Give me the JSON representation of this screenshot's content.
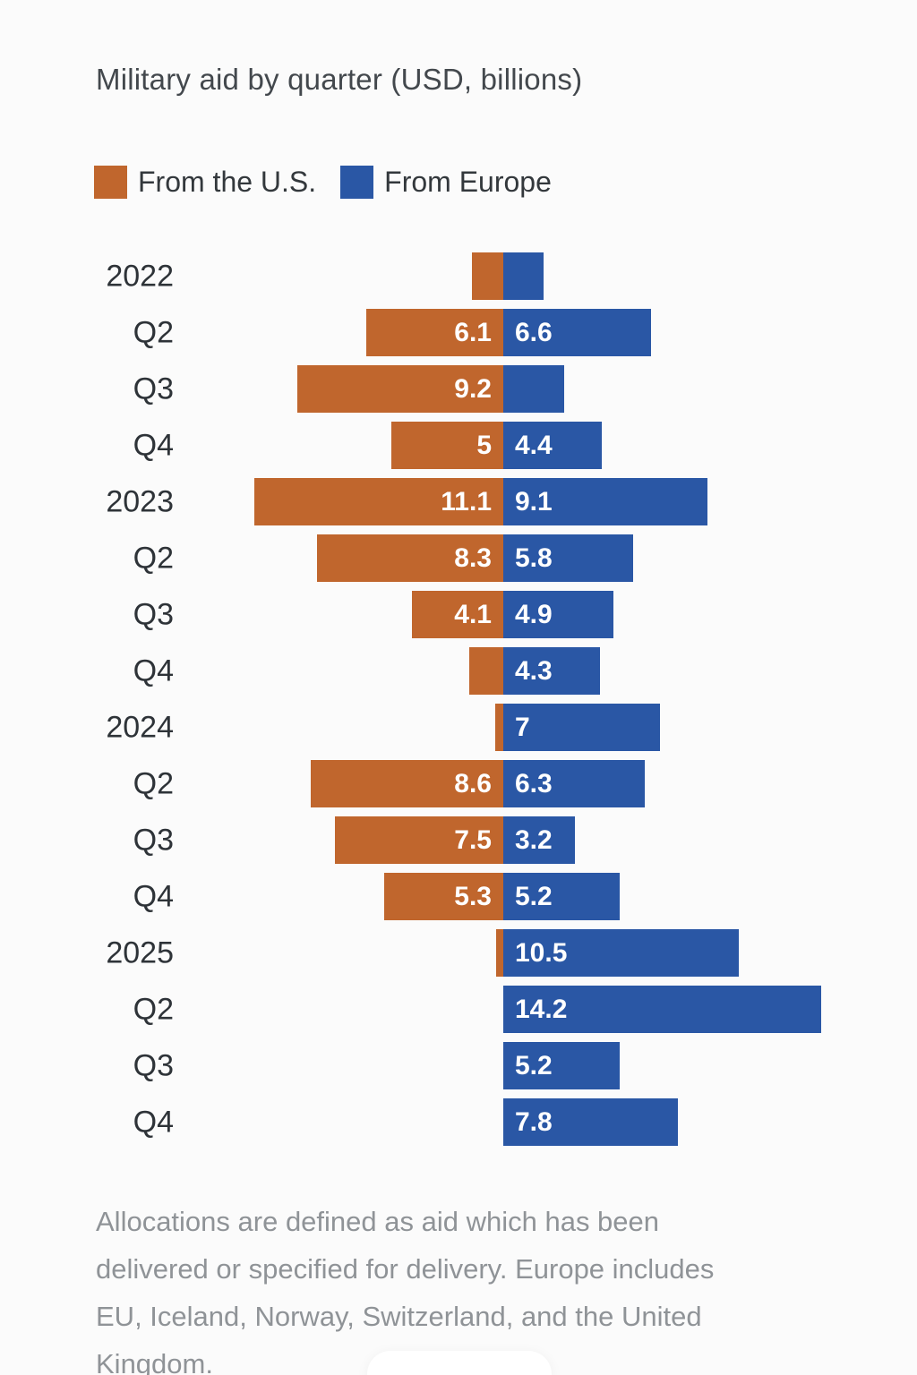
{
  "title": "Military aid by quarter (USD, billions)",
  "legend": [
    {
      "label": "From the U.S.",
      "color": "#c0662d"
    },
    {
      "label": "From Europe",
      "color": "#2a57a5"
    }
  ],
  "chart_data": {
    "type": "bar",
    "orientation": "horizontal-diverging",
    "title": "Military aid by quarter (USD, billions)",
    "unit": "USD billions",
    "legend_position": "top",
    "grid": false,
    "categories": [
      "2022",
      "Q2",
      "Q3",
      "Q4",
      "2023",
      "Q2",
      "Q3",
      "Q4",
      "2024",
      "Q2",
      "Q3",
      "Q4",
      "2025",
      "Q2",
      "Q3",
      "Q4"
    ],
    "series": [
      {
        "name": "From the U.S.",
        "color": "#c0662d",
        "direction": "left",
        "values": [
          1.4,
          6.1,
          9.2,
          5,
          11.1,
          8.3,
          4.1,
          1.5,
          0.35,
          8.6,
          7.5,
          5.3,
          0.3,
          0,
          0,
          0
        ],
        "labels": [
          "",
          "6.1",
          "9.2",
          "5",
          "11.1",
          "8.3",
          "4.1",
          "",
          "",
          "8.6",
          "7.5",
          "5.3",
          "",
          "",
          "",
          ""
        ]
      },
      {
        "name": "From Europe",
        "color": "#2a57a5",
        "direction": "right",
        "values": [
          1.8,
          6.6,
          2.7,
          4.4,
          9.1,
          5.8,
          4.9,
          4.3,
          7,
          6.3,
          3.2,
          5.2,
          10.5,
          14.2,
          5.2,
          7.8
        ],
        "labels": [
          "",
          "6.6",
          "",
          "4.4",
          "9.1",
          "5.8",
          "4.9",
          "4.3",
          "7",
          "6.3",
          "3.2",
          "5.2",
          "10.5",
          "14.2",
          "5.2",
          "7.8"
        ]
      }
    ]
  },
  "footnote_lines": [
    "Allocations are defined as aid which has been",
    "delivered or specified for delivery. Europe includes",
    "EU, Iceland, Norway, Switzerland, and the United",
    "Kingdom."
  ]
}
